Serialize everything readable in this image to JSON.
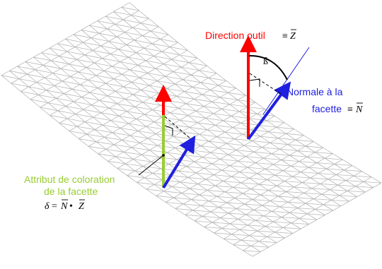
{
  "labels": {
    "tool_direction": "Direction outil",
    "tool_direction_eq": "≡",
    "tool_direction_vec": "Z",
    "beta": "ß",
    "normal_line1": "Normale à la",
    "normal_line2": "facette",
    "normal_eq": "≡",
    "normal_vec": "N",
    "coloring_line1": "Attribut de coloration",
    "coloring_line2": "de la facette",
    "delta_sym": "δ",
    "delta_eq": "=",
    "delta_n": "N",
    "delta_dot": "•",
    "delta_z": "Z"
  },
  "colors": {
    "tool_arrow": "#ff0000",
    "normal_arrow": "#1f1fe0",
    "coloring_bar": "#99cc33",
    "mesh": "#b8b8b8",
    "text_dark": "#000000"
  }
}
